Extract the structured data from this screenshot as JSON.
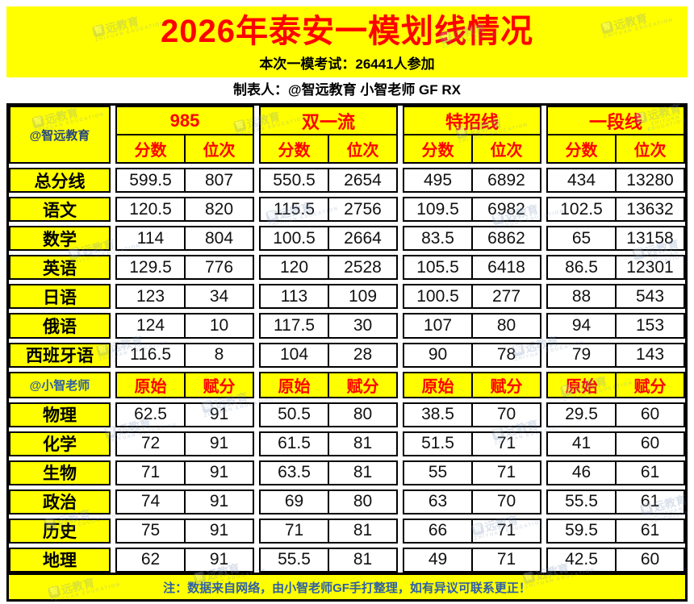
{
  "banner": {
    "title": "2026年泰安一模划线情况",
    "subtitle": "本次一模考试：26441人参加"
  },
  "byline": "制表人：@智远教育 小智老师 GF RX",
  "sections": [
    {
      "corner": "@智远教育",
      "groups": [
        "985",
        "双一流",
        "特招线",
        "一段线"
      ],
      "subheaders": [
        "分数",
        "位次"
      ],
      "rows": [
        {
          "label": "总分线",
          "values": [
            "599.5",
            "807",
            "550.5",
            "2654",
            "495",
            "6892",
            "434",
            "13280"
          ]
        },
        {
          "label": "语文",
          "values": [
            "120.5",
            "820",
            "115.5",
            "2756",
            "109.5",
            "6982",
            "102.5",
            "13632"
          ]
        },
        {
          "label": "数学",
          "values": [
            "114",
            "804",
            "100.5",
            "2664",
            "83.5",
            "6862",
            "65",
            "13158"
          ]
        },
        {
          "label": "英语",
          "values": [
            "129.5",
            "776",
            "120",
            "2528",
            "105.5",
            "6418",
            "86.5",
            "12301"
          ]
        },
        {
          "label": "日语",
          "values": [
            "123",
            "34",
            "113",
            "109",
            "100.5",
            "277",
            "88",
            "543"
          ]
        },
        {
          "label": "俄语",
          "values": [
            "124",
            "10",
            "117.5",
            "30",
            "107",
            "80",
            "94",
            "153"
          ]
        },
        {
          "label": "西班牙语",
          "values": [
            "116.5",
            "8",
            "104",
            "28",
            "90",
            "78",
            "79",
            "143"
          ]
        }
      ]
    },
    {
      "corner": "@小智老师",
      "subheaders": [
        "原始",
        "赋分"
      ],
      "rows": [
        {
          "label": "物理",
          "values": [
            "62.5",
            "91",
            "50.5",
            "80",
            "38.5",
            "70",
            "29.5",
            "60"
          ]
        },
        {
          "label": "化学",
          "values": [
            "72",
            "91",
            "61.5",
            "81",
            "51.5",
            "71",
            "41",
            "60"
          ]
        },
        {
          "label": "生物",
          "values": [
            "71",
            "91",
            "63.5",
            "81",
            "55",
            "71",
            "46",
            "61"
          ]
        },
        {
          "label": "政治",
          "values": [
            "74",
            "91",
            "69",
            "80",
            "63",
            "70",
            "55.5",
            "61"
          ]
        },
        {
          "label": "历史",
          "values": [
            "75",
            "91",
            "71",
            "81",
            "66",
            "71",
            "59.5",
            "61"
          ]
        },
        {
          "label": "地理",
          "values": [
            "62",
            "91",
            "55.5",
            "81",
            "49",
            "71",
            "42.5",
            "60"
          ]
        }
      ]
    }
  ],
  "footer": "注：数据来自网络，由小智老师GF手打整理，如有异议可联系更正！",
  "watermark": {
    "text": "远教育",
    "logo_char": "智",
    "subtext": "ZHIYUAN EDUCATION"
  },
  "colors": {
    "banner_bg": "#FFFF00",
    "title_red": "#FE0000",
    "header_red": "#FE0000",
    "credit_blue_1": "#27477E",
    "credit_blue_2": "#2E5FA8",
    "footer_blue": "#2E5FA8",
    "border_black": "#000000"
  },
  "chart_data": [
    {
      "type": "table",
      "title": "2026年泰安一模划线情况",
      "subtitle": "本次一模考试：26441人参加",
      "column_groups": [
        "985",
        "双一流",
        "特招线",
        "一段线"
      ],
      "sub_columns": [
        "分数",
        "位次"
      ],
      "corner_label": "@智远教育",
      "rows": [
        [
          "总分线",
          599.5,
          807,
          550.5,
          2654,
          495,
          6892,
          434,
          13280
        ],
        [
          "语文",
          120.5,
          820,
          115.5,
          2756,
          109.5,
          6982,
          102.5,
          13632
        ],
        [
          "数学",
          114,
          804,
          100.5,
          2664,
          83.5,
          6862,
          65,
          13158
        ],
        [
          "英语",
          129.5,
          776,
          120,
          2528,
          105.5,
          6418,
          86.5,
          12301
        ],
        [
          "日语",
          123,
          34,
          113,
          109,
          100.5,
          277,
          88,
          543
        ],
        [
          "俄语",
          124,
          10,
          117.5,
          30,
          107,
          80,
          94,
          153
        ],
        [
          "西班牙语",
          116.5,
          8,
          104,
          28,
          90,
          78,
          79,
          143
        ]
      ]
    },
    {
      "type": "table",
      "column_groups": [
        "985",
        "双一流",
        "特招线",
        "一段线"
      ],
      "sub_columns": [
        "原始",
        "赋分"
      ],
      "corner_label": "@小智老师",
      "rows": [
        [
          "物理",
          62.5,
          91,
          50.5,
          80,
          38.5,
          70,
          29.5,
          60
        ],
        [
          "化学",
          72,
          91,
          61.5,
          81,
          51.5,
          71,
          41,
          60
        ],
        [
          "生物",
          71,
          91,
          63.5,
          81,
          55,
          71,
          46,
          61
        ],
        [
          "政治",
          74,
          91,
          69,
          80,
          63,
          70,
          55.5,
          61
        ],
        [
          "历史",
          75,
          91,
          71,
          81,
          66,
          71,
          59.5,
          61
        ],
        [
          "地理",
          62,
          91,
          55.5,
          81,
          49,
          71,
          42.5,
          60
        ]
      ]
    }
  ]
}
